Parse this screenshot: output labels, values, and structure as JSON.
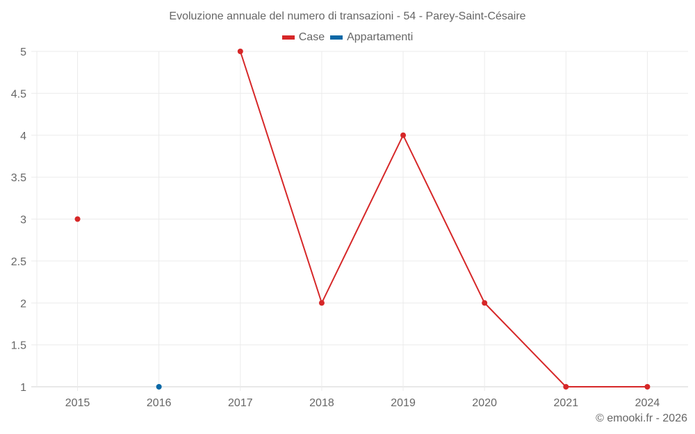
{
  "chart_data": {
    "type": "line",
    "title": "Evoluzione annuale del numero di transazioni - 54 - Parey-Saint-Césaire",
    "xlabel": "",
    "ylabel": "",
    "categories": [
      "2015",
      "2016",
      "2017",
      "2018",
      "2019",
      "2020",
      "2021",
      "2024"
    ],
    "series": [
      {
        "name": "Case",
        "color": "#d62728",
        "values": [
          3,
          null,
          5,
          2,
          4,
          2,
          1,
          1
        ]
      },
      {
        "name": "Appartamenti",
        "color": "#0868a6",
        "values": [
          null,
          1,
          null,
          null,
          null,
          null,
          null,
          null
        ]
      }
    ],
    "ylim": [
      1,
      5
    ],
    "yticks": [
      "1",
      "1.5",
      "2",
      "2.5",
      "3",
      "3.5",
      "4",
      "4.5",
      "5"
    ],
    "grid": true,
    "legend_position": "top"
  },
  "legend": [
    {
      "label": "Case",
      "color": "#d62728"
    },
    {
      "label": "Appartamenti",
      "color": "#0868a6"
    }
  ],
  "credit": "© emooki.fr - 2026"
}
